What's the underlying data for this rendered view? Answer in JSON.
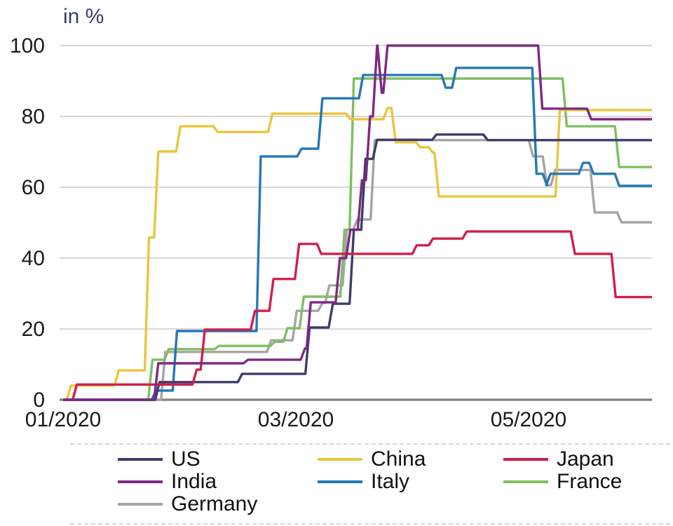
{
  "title": "in %",
  "chart_data": {
    "type": "line",
    "step": true,
    "title": "in %",
    "xlabel": "",
    "ylabel": "in %",
    "x_axis": {
      "unit": "months since 01/2020",
      "range": [
        0,
        5.06
      ],
      "ticks": [
        {
          "m": 0,
          "label": "01/2020"
        },
        {
          "m": 2,
          "label": "03/2020"
        },
        {
          "m": 4,
          "label": "05/2020"
        }
      ]
    },
    "y_axis": {
      "range": [
        0,
        100
      ],
      "ticks": [
        0,
        20,
        40,
        60,
        80,
        100
      ]
    },
    "grid": true,
    "legend_position": "bottom",
    "series": [
      {
        "name": "Germany",
        "color": "#A5A5A5",
        "points": [
          [
            0,
            0
          ],
          [
            0.86,
            13.5
          ],
          [
            1.77,
            16.8
          ],
          [
            1.99,
            25.1
          ],
          [
            2.21,
            27.3
          ],
          [
            2.27,
            32.3
          ],
          [
            2.42,
            48
          ],
          [
            2.51,
            50.9
          ],
          [
            2.66,
            73.3
          ],
          [
            4.02,
            68.7
          ],
          [
            4.14,
            60.6
          ],
          [
            4.21,
            64.9
          ],
          [
            4.55,
            52.9
          ],
          [
            4.78,
            50.1
          ],
          [
            5.06,
            50.1
          ]
        ]
      },
      {
        "name": "France",
        "color": "#7FBE62",
        "points": [
          [
            0,
            0
          ],
          [
            0.75,
            11.3
          ],
          [
            0.89,
            14.3
          ],
          [
            1.32,
            15.2
          ],
          [
            1.8,
            16.4
          ],
          [
            1.91,
            20.2
          ],
          [
            2.05,
            29.1
          ],
          [
            2.4,
            48
          ],
          [
            2.48,
            90.7
          ],
          [
            4.31,
            77.2
          ],
          [
            4.76,
            65.7
          ],
          [
            5.06,
            65.7
          ]
        ]
      },
      {
        "name": "China",
        "color": "#E8C63E",
        "points": [
          [
            0,
            0
          ],
          [
            0.05,
            4
          ],
          [
            0.46,
            8.3
          ],
          [
            0.72,
            45.8
          ],
          [
            0.8,
            70.1
          ],
          [
            0.99,
            77.2
          ],
          [
            1.31,
            75.6
          ],
          [
            1.78,
            80.8
          ],
          [
            2.45,
            79.2
          ],
          [
            2.77,
            82.4
          ],
          [
            2.84,
            72.7
          ],
          [
            3.05,
            71.3
          ],
          [
            3.16,
            69.7
          ],
          [
            3.21,
            57.4
          ],
          [
            4.25,
            81.8
          ],
          [
            5.06,
            81.8
          ]
        ]
      },
      {
        "name": "Italy",
        "color": "#2379B6",
        "points": [
          [
            0,
            0
          ],
          [
            0.78,
            2.6
          ],
          [
            0.96,
            19.4
          ],
          [
            1.68,
            68.7
          ],
          [
            2.03,
            70.9
          ],
          [
            2.21,
            85.1
          ],
          [
            2.56,
            91.7
          ],
          [
            3.27,
            88.1
          ],
          [
            3.36,
            93.7
          ],
          [
            4.05,
            63.8
          ],
          [
            4.14,
            60.6
          ],
          [
            4.17,
            63.8
          ],
          [
            4.45,
            66.9
          ],
          [
            4.54,
            63.8
          ],
          [
            4.76,
            60.4
          ],
          [
            5.06,
            60.4
          ]
        ]
      },
      {
        "name": "US",
        "color": "#3C3C6E",
        "points": [
          [
            0,
            0
          ],
          [
            0.81,
            5
          ],
          [
            1.52,
            7.3
          ],
          [
            2.1,
            20.4
          ],
          [
            2.3,
            27.1
          ],
          [
            2.48,
            48
          ],
          [
            2.58,
            68
          ],
          [
            2.68,
            73.4
          ],
          [
            3.19,
            74.9
          ],
          [
            3.63,
            73.3
          ],
          [
            5.06,
            73.3
          ]
        ]
      },
      {
        "name": "Japan",
        "color": "#D11F4B",
        "points": [
          [
            0,
            0
          ],
          [
            0.1,
            4.3
          ],
          [
            1.13,
            8.5
          ],
          [
            1.2,
            19.8
          ],
          [
            1.63,
            25.1
          ],
          [
            1.79,
            34.1
          ],
          [
            2.01,
            44
          ],
          [
            2.2,
            41.2
          ],
          [
            3.02,
            43.6
          ],
          [
            3.16,
            45.5
          ],
          [
            3.45,
            47.5
          ],
          [
            4.38,
            41.2
          ],
          [
            4.73,
            29
          ],
          [
            5.06,
            29
          ]
        ]
      },
      {
        "name": "India",
        "color": "#7D2982",
        "points": [
          [
            0,
            0
          ],
          [
            0.8,
            10.3
          ],
          [
            1.57,
            11.3
          ],
          [
            2.06,
            14.5
          ],
          [
            2.11,
            27.5
          ],
          [
            2.36,
            40
          ],
          [
            2.45,
            48
          ],
          [
            2.55,
            62
          ],
          [
            2.62,
            80
          ],
          [
            2.68,
            100
          ],
          [
            2.72,
            86.7
          ],
          [
            2.77,
            100
          ],
          [
            4.1,
            82.2
          ],
          [
            4.52,
            79.2
          ],
          [
            5.06,
            79.2
          ]
        ]
      }
    ]
  },
  "legend": {
    "items": [
      {
        "label": "US",
        "color": "#3C3C6E"
      },
      {
        "label": "China",
        "color": "#E8C63E"
      },
      {
        "label": "Japan",
        "color": "#D11F4B"
      },
      {
        "label": "India",
        "color": "#7D2982"
      },
      {
        "label": "Italy",
        "color": "#2379B6"
      },
      {
        "label": "France",
        "color": "#7FBE62"
      },
      {
        "label": "Germany",
        "color": "#A5A5A5"
      }
    ]
  },
  "colors": {
    "grid": "#CCCCCC",
    "zero_axis": "#808080",
    "tick_text": "#1a1a1a",
    "axis_title": "#383E68",
    "background": "#FFFFFF"
  }
}
